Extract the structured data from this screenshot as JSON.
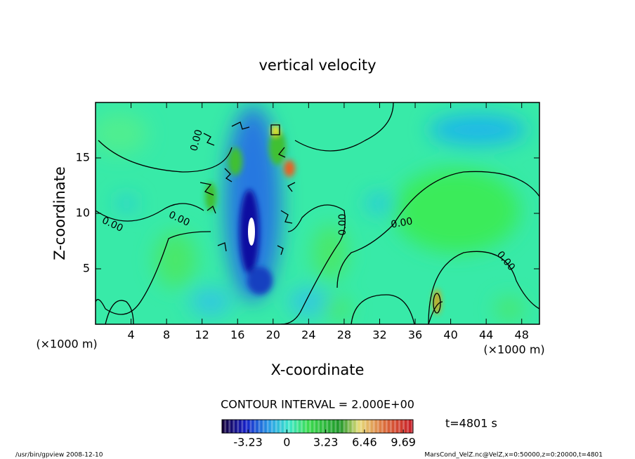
{
  "chart_data": {
    "type": "contour",
    "title": "vertical velocity",
    "xlabel": "X-coordinate",
    "ylabel": "Z-coordinate",
    "x_unit": "(×1000 m)",
    "y_unit": "(×1000 m)",
    "xlim": [
      0,
      50
    ],
    "xticks": [
      4,
      8,
      12,
      16,
      20,
      24,
      28,
      32,
      36,
      40,
      44,
      48
    ],
    "ylim": [
      0,
      20
    ],
    "yticks": [
      5,
      10,
      15
    ],
    "contour_labels": [
      {
        "value": 0,
        "label": "0.00"
      },
      {
        "value": 0,
        "label": "0.00"
      },
      {
        "value": 0,
        "label": "0.00"
      },
      {
        "value": 0,
        "label": "0.00"
      },
      {
        "value": 0,
        "label": "0.00"
      },
      {
        "value": 0,
        "label": "0.00"
      }
    ],
    "contour_interval": "CONTOUR INTERVAL = 2.000E+00",
    "colorbar": {
      "clim": [
        -5.4,
        10.5
      ],
      "ticks": [
        -3.23,
        0,
        3.23,
        6.46,
        9.69
      ]
    },
    "time_label": "t=4801 s",
    "footer_left": "/usr/bin/gpview   2008-12-10",
    "footer_right": "MarsCond_VelZ.nc@VelZ,x=0:50000,z=0:20000,t=4801"
  }
}
